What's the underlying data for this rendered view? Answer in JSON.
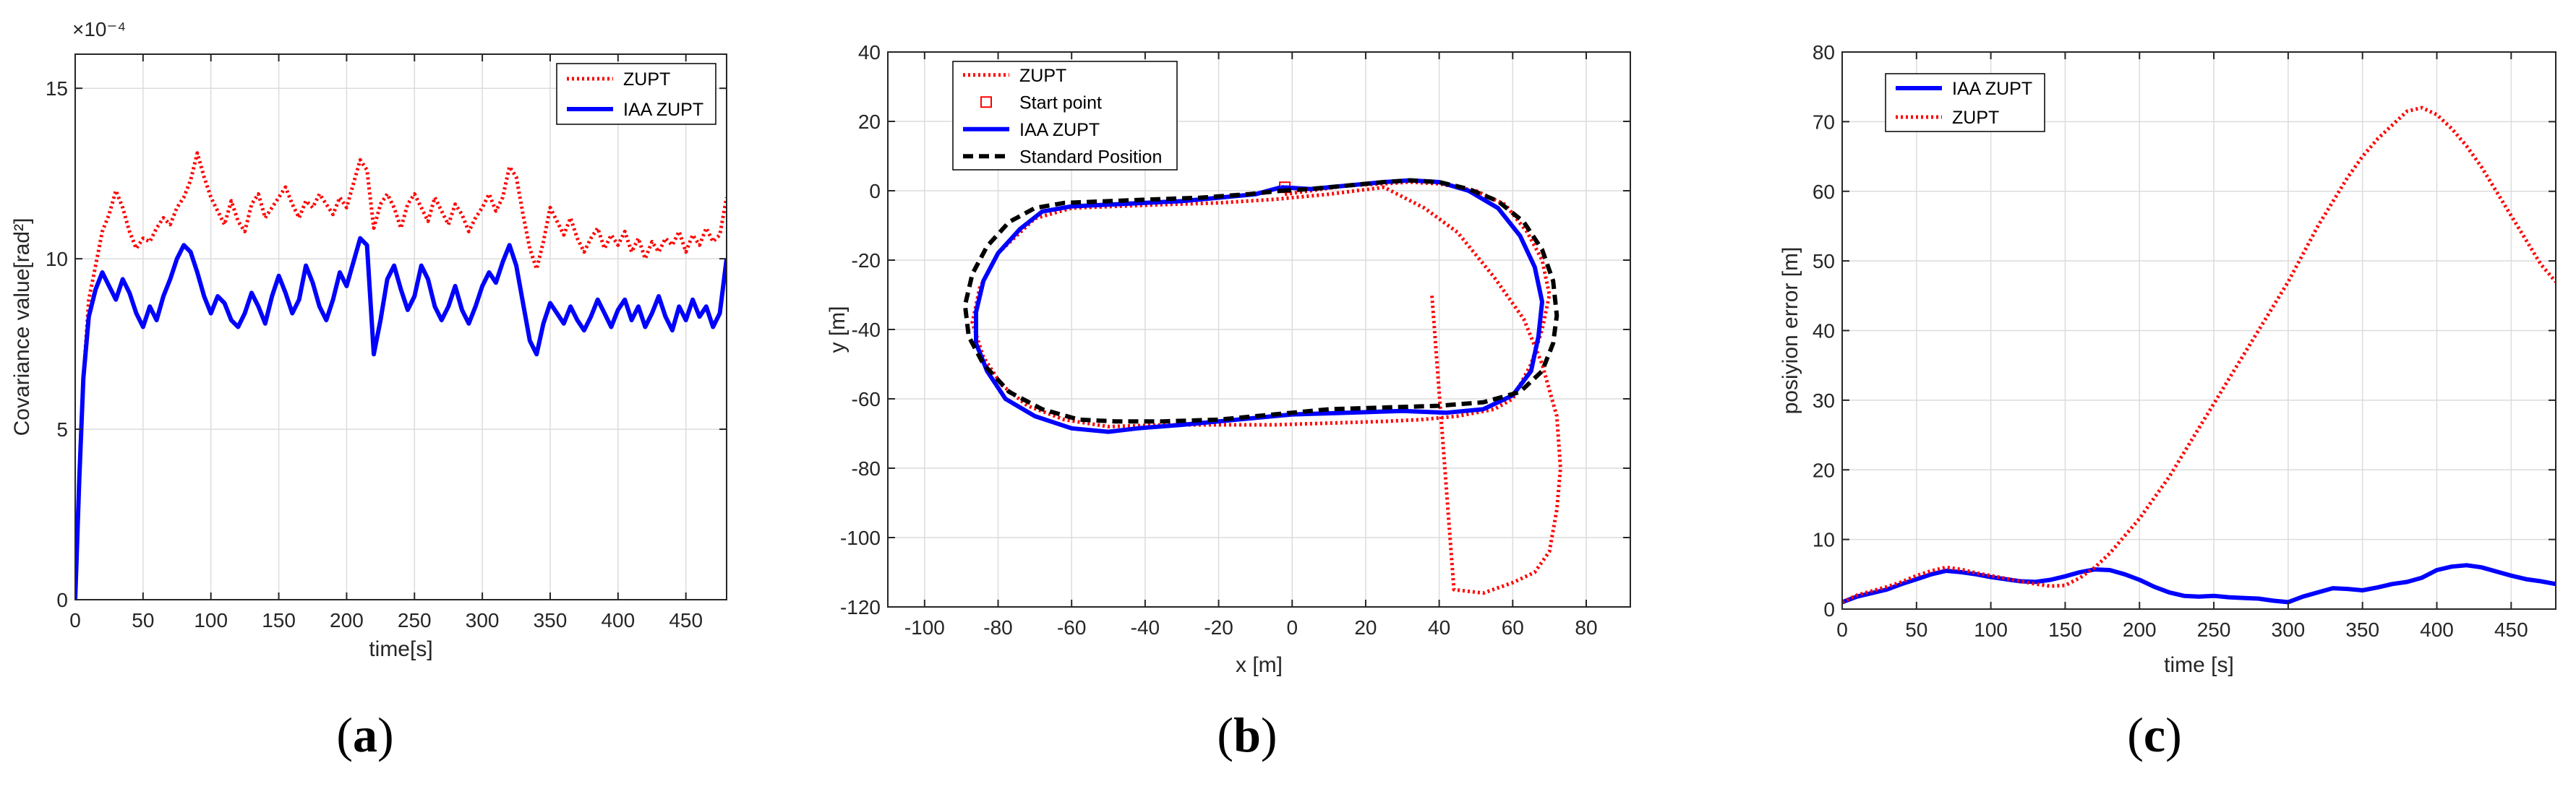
{
  "colors": {
    "zupt": "#ff0000",
    "iaa": "#0000ff",
    "standard": "#000000",
    "grid": "#dcdcdc",
    "axis": "#262626"
  },
  "chart_data": [
    {
      "id": "a",
      "type": "line",
      "caption_letter": "a",
      "xlabel": "time[s]",
      "ylabel": "Covariance value[rad²]",
      "y_exponent_label": "×10⁻⁴",
      "xlim": [
        0,
        480
      ],
      "ylim": [
        0,
        16
      ],
      "xticks": [
        0,
        50,
        100,
        150,
        200,
        250,
        300,
        350,
        400,
        450
      ],
      "yticks": [
        0,
        5,
        10,
        15
      ],
      "grid": true,
      "legend_position": "top-right",
      "series": [
        {
          "name": "ZUPT",
          "color": "#ff0000",
          "style": "dotted",
          "x": [
            0,
            3,
            6,
            10,
            15,
            20,
            25,
            30,
            35,
            40,
            45,
            50,
            55,
            60,
            65,
            70,
            75,
            80,
            85,
            90,
            95,
            100,
            105,
            110,
            115,
            120,
            125,
            130,
            135,
            140,
            145,
            150,
            155,
            160,
            165,
            170,
            175,
            180,
            185,
            190,
            195,
            200,
            205,
            210,
            215,
            220,
            225,
            230,
            235,
            240,
            245,
            250,
            255,
            260,
            265,
            270,
            275,
            280,
            285,
            290,
            295,
            300,
            305,
            310,
            315,
            320,
            325,
            330,
            335,
            340,
            345,
            350,
            355,
            360,
            365,
            370,
            375,
            380,
            385,
            390,
            395,
            400,
            405,
            410,
            415,
            420,
            425,
            430,
            435,
            440,
            445,
            450,
            455,
            460,
            465,
            470,
            475,
            480
          ],
          "y": [
            0,
            3.5,
            6.5,
            8.8,
            9.8,
            10.8,
            11.3,
            12.0,
            11.5,
            10.8,
            10.3,
            10.6,
            10.5,
            10.9,
            11.2,
            11.0,
            11.5,
            11.8,
            12.3,
            13.1,
            12.4,
            11.8,
            11.4,
            11.0,
            11.7,
            11.1,
            10.8,
            11.6,
            11.9,
            11.2,
            11.5,
            11.8,
            12.1,
            11.6,
            11.2,
            11.7,
            11.5,
            11.9,
            11.6,
            11.3,
            11.8,
            11.5,
            12.2,
            12.9,
            12.6,
            10.9,
            11.6,
            11.9,
            11.5,
            10.9,
            11.6,
            11.9,
            11.5,
            11.1,
            11.8,
            11.4,
            11.0,
            11.6,
            11.3,
            10.8,
            11.2,
            11.5,
            11.9,
            11.4,
            11.8,
            12.7,
            12.4,
            11.3,
            10.3,
            9.7,
            10.5,
            11.5,
            11.1,
            10.7,
            11.2,
            10.6,
            10.2,
            10.6,
            10.9,
            10.3,
            10.7,
            10.4,
            10.8,
            10.2,
            10.6,
            10.0,
            10.5,
            10.2,
            10.6,
            10.4,
            10.8,
            10.2,
            10.7,
            10.4,
            10.9,
            10.5,
            10.7,
            11.8
          ]
        },
        {
          "name": "IAA ZUPT",
          "color": "#0000ff",
          "style": "solid",
          "x": [
            0,
            3,
            6,
            10,
            15,
            20,
            25,
            30,
            35,
            40,
            45,
            50,
            55,
            60,
            65,
            70,
            75,
            80,
            85,
            90,
            95,
            100,
            105,
            110,
            115,
            120,
            125,
            130,
            135,
            140,
            145,
            150,
            155,
            160,
            165,
            170,
            175,
            180,
            185,
            190,
            195,
            200,
            205,
            210,
            215,
            220,
            225,
            230,
            235,
            240,
            245,
            250,
            255,
            260,
            265,
            270,
            275,
            280,
            285,
            290,
            295,
            300,
            305,
            310,
            315,
            320,
            325,
            330,
            335,
            340,
            345,
            350,
            355,
            360,
            365,
            370,
            375,
            380,
            385,
            390,
            395,
            400,
            405,
            410,
            415,
            420,
            425,
            430,
            435,
            440,
            445,
            450,
            455,
            460,
            465,
            470,
            475,
            480
          ],
          "y": [
            0,
            3.5,
            6.5,
            8.3,
            9.1,
            9.6,
            9.2,
            8.8,
            9.4,
            9.0,
            8.4,
            8.0,
            8.6,
            8.2,
            8.9,
            9.4,
            10.0,
            10.4,
            10.2,
            9.6,
            8.9,
            8.4,
            8.9,
            8.7,
            8.2,
            8.0,
            8.4,
            9.0,
            8.6,
            8.1,
            8.9,
            9.5,
            9.0,
            8.4,
            8.8,
            9.8,
            9.3,
            8.6,
            8.2,
            8.8,
            9.6,
            9.2,
            9.9,
            10.6,
            10.4,
            7.2,
            8.2,
            9.4,
            9.8,
            9.1,
            8.5,
            8.9,
            9.8,
            9.4,
            8.6,
            8.2,
            8.6,
            9.2,
            8.5,
            8.1,
            8.6,
            9.2,
            9.6,
            9.3,
            9.9,
            10.4,
            9.8,
            8.7,
            7.6,
            7.2,
            8.1,
            8.7,
            8.4,
            8.1,
            8.6,
            8.2,
            7.9,
            8.3,
            8.8,
            8.4,
            8.0,
            8.5,
            8.8,
            8.2,
            8.6,
            8.0,
            8.4,
            8.9,
            8.3,
            7.9,
            8.6,
            8.2,
            8.8,
            8.3,
            8.6,
            8.0,
            8.4,
            10.0
          ]
        }
      ]
    },
    {
      "id": "b",
      "type": "line",
      "caption_letter": "b",
      "xlabel": "x [m]",
      "ylabel": "y [m]",
      "xlim": [
        -110,
        92
      ],
      "ylim": [
        -120,
        40
      ],
      "xticks": [
        -100,
        -80,
        -60,
        -40,
        -20,
        0,
        20,
        40,
        60,
        80
      ],
      "yticks": [
        -120,
        -100,
        -80,
        -60,
        -40,
        -20,
        0,
        20,
        40
      ],
      "grid": true,
      "legend_position": "top-left",
      "series": [
        {
          "name": "ZUPT",
          "color": "#ff0000",
          "style": "dotted",
          "x": [
            -2,
            5,
            15,
            25,
            32,
            40,
            50,
            58,
            64,
            68,
            70,
            68,
            65,
            60,
            55,
            50,
            45,
            40,
            35,
            25,
            10,
            -5,
            -20,
            -35,
            -50,
            -62,
            -72,
            -79,
            -84,
            -87,
            -85,
            -80,
            -70,
            -60,
            -48,
            -35,
            -20,
            -5,
            10,
            25,
            36,
            45,
            55,
            63,
            68,
            72,
            73,
            72,
            70,
            66,
            60,
            52,
            44,
            38
          ],
          "y": [
            -1,
            0,
            1.5,
            2,
            2.5,
            2,
            0,
            -4,
            -12,
            -20,
            -30,
            -40,
            -50,
            -60,
            -63,
            -64,
            -65,
            -65.5,
            -66,
            -66.5,
            -67,
            -67.5,
            -67.5,
            -67.5,
            -68,
            -66,
            -62,
            -56,
            -48,
            -38,
            -28,
            -18,
            -8,
            -5,
            -4.5,
            -4,
            -3.5,
            -2.5,
            -1,
            1,
            -5,
            -12,
            -25,
            -37,
            -50,
            -65,
            -80,
            -92,
            -104,
            -110,
            -113,
            -116,
            -115,
            -30
          ]
        },
        {
          "name": "Start point",
          "color": "#ff0000",
          "style": "marker",
          "x": [
            -2
          ],
          "y": [
            1
          ]
        },
        {
          "name": "IAA ZUPT",
          "color": "#0000ff",
          "style": "solid",
          "x": [
            -3,
            5,
            15,
            25,
            32,
            40,
            48,
            56,
            62,
            66,
            68,
            67,
            65,
            60,
            52,
            42,
            30,
            15,
            0,
            -15,
            -30,
            -42,
            -50,
            -60,
            -70,
            -78,
            -83,
            -86,
            -86,
            -84,
            -80,
            -74,
            -68,
            -60,
            -50,
            -40,
            -30,
            -20,
            -10,
            -3
          ],
          "y": [
            1,
            0.5,
            1.5,
            2.5,
            3,
            2.5,
            0,
            -5,
            -13,
            -22,
            -32,
            -42,
            -52,
            -59,
            -63,
            -64,
            -63.5,
            -64,
            -64.5,
            -66,
            -67.5,
            -68.5,
            -69.5,
            -68.5,
            -65,
            -60,
            -52,
            -44,
            -35,
            -26,
            -18,
            -11,
            -6,
            -4.5,
            -4,
            -3.5,
            -3,
            -2,
            -1,
            1
          ]
        },
        {
          "name": "Standard Position",
          "color": "#000000",
          "style": "dashed",
          "x": [
            -3,
            5,
            15,
            25,
            32,
            40,
            48,
            56,
            63,
            68,
            71,
            72,
            71,
            68,
            62,
            52,
            40,
            25,
            10,
            -5,
            -20,
            -35,
            -48,
            -58,
            -68,
            -77,
            -84,
            -88,
            -89,
            -87,
            -83,
            -77,
            -70,
            -62,
            -50,
            -38,
            -25,
            -12,
            -3
          ],
          "y": [
            0,
            0.5,
            1.5,
            2.5,
            3,
            2.5,
            0.5,
            -3,
            -9,
            -17,
            -26,
            -36,
            -44,
            -52,
            -58,
            -61,
            -62,
            -62.5,
            -63,
            -64.5,
            -66,
            -66.5,
            -66.5,
            -66,
            -63,
            -58,
            -50,
            -42,
            -33,
            -24,
            -16,
            -9,
            -5,
            -3.5,
            -3,
            -2.5,
            -2,
            -1,
            0
          ]
        }
      ]
    },
    {
      "id": "c",
      "type": "line",
      "caption_letter": "c",
      "xlabel": "time [s]",
      "ylabel": "posiyion error [m]",
      "xlim": [
        0,
        480
      ],
      "ylim": [
        0,
        80
      ],
      "xticks": [
        0,
        50,
        100,
        150,
        200,
        250,
        300,
        350,
        400,
        450
      ],
      "yticks": [
        0,
        10,
        20,
        30,
        40,
        50,
        60,
        70,
        80
      ],
      "grid": true,
      "legend_position": "top-left",
      "series": [
        {
          "name": "IAA ZUPT",
          "color": "#0000ff",
          "style": "solid",
          "x": [
            0,
            10,
            20,
            30,
            40,
            50,
            60,
            70,
            80,
            90,
            100,
            110,
            120,
            130,
            140,
            150,
            160,
            170,
            180,
            190,
            200,
            210,
            220,
            230,
            240,
            250,
            260,
            270,
            280,
            290,
            300,
            310,
            320,
            330,
            340,
            350,
            360,
            370,
            380,
            390,
            400,
            410,
            420,
            430,
            440,
            450,
            460,
            470,
            480
          ],
          "y": [
            1,
            1.8,
            2.3,
            2.8,
            3.6,
            4.3,
            5.0,
            5.5,
            5.3,
            5.0,
            4.6,
            4.3,
            4.0,
            3.9,
            4.2,
            4.7,
            5.3,
            5.7,
            5.6,
            5.0,
            4.2,
            3.2,
            2.4,
            1.9,
            1.8,
            1.9,
            1.7,
            1.6,
            1.5,
            1.2,
            1.0,
            1.8,
            2.4,
            3.0,
            2.9,
            2.7,
            3.1,
            3.6,
            3.9,
            4.5,
            5.6,
            6.1,
            6.3,
            6.0,
            5.4,
            4.8,
            4.3,
            4.0,
            3.6
          ]
        },
        {
          "name": "ZUPT",
          "color": "#ff0000",
          "style": "dotted",
          "x": [
            0,
            10,
            20,
            30,
            40,
            50,
            60,
            70,
            80,
            90,
            100,
            110,
            120,
            130,
            140,
            150,
            160,
            170,
            180,
            190,
            200,
            210,
            220,
            230,
            240,
            250,
            260,
            270,
            280,
            290,
            300,
            310,
            320,
            330,
            340,
            350,
            360,
            370,
            380,
            390,
            400,
            410,
            420,
            430,
            440,
            450,
            460,
            470,
            480
          ],
          "y": [
            1,
            2.0,
            2.6,
            3.2,
            3.9,
            4.8,
            5.5,
            6.0,
            5.7,
            5.2,
            4.8,
            4.4,
            4.0,
            3.6,
            3.3,
            3.4,
            4.5,
            6.0,
            8.0,
            10.5,
            13.0,
            16.0,
            19.0,
            22.5,
            26.0,
            29.5,
            33.0,
            36.5,
            40.0,
            43.5,
            47.0,
            51.0,
            55.0,
            58.5,
            62.0,
            65.0,
            67.5,
            69.5,
            71.5,
            72.0,
            71.0,
            69.0,
            66.5,
            63.5,
            60.0,
            56.5,
            53.0,
            49.5,
            47.0
          ]
        }
      ]
    }
  ]
}
